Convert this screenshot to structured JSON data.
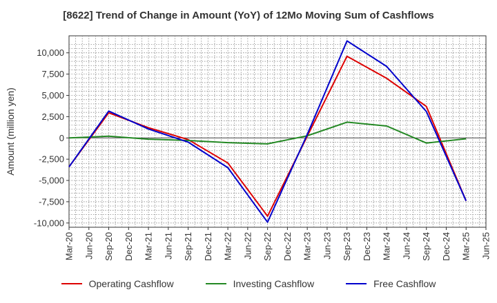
{
  "chart_data": {
    "type": "line",
    "title": "[8622]  Trend of Change in Amount (YoY) of 12Mo Moving Sum of Cashflows",
    "xlabel": "",
    "ylabel": "Amount (million yen)",
    "ylim": [
      -10500,
      12000
    ],
    "grid": true,
    "legend_position": "bottom",
    "x_ticks": [
      "Mar-20",
      "Jun-20",
      "Sep-20",
      "Dec-20",
      "Mar-21",
      "Jun-21",
      "Sep-21",
      "Dec-21",
      "Mar-22",
      "Jun-22",
      "Sep-22",
      "Dec-22",
      "Mar-23",
      "Jun-23",
      "Sep-23",
      "Dec-23",
      "Mar-24",
      "Jun-24",
      "Sep-24",
      "Dec-24",
      "Mar-25",
      "Jun-25"
    ],
    "y_ticks": [
      10000,
      7500,
      5000,
      2500,
      0,
      -2500,
      -5000,
      -7500,
      -10000
    ],
    "y_tick_labels": [
      "10,000",
      "7,500",
      "5,000",
      "2,500",
      "0",
      "-2,500",
      "-5,000",
      "-7,500",
      "-10,000"
    ],
    "series": [
      {
        "name": "Operating Cashflow",
        "color": "#dd0000",
        "x": [
          "Mar-20",
          "Sep-20",
          "Mar-21",
          "Sep-21",
          "Mar-22",
          "Sep-22",
          "Mar-23",
          "Sep-23",
          "Mar-24",
          "Sep-24",
          "Mar-25"
        ],
        "values": [
          -3400,
          2950,
          1200,
          -200,
          -2950,
          -9200,
          200,
          9600,
          7000,
          3700,
          -7400
        ]
      },
      {
        "name": "Investing Cashflow",
        "color": "#228822",
        "x": [
          "Mar-20",
          "Sep-20",
          "Mar-21",
          "Sep-21",
          "Mar-22",
          "Sep-22",
          "Mar-23",
          "Sep-23",
          "Mar-24",
          "Sep-24",
          "Mar-25"
        ],
        "values": [
          0,
          200,
          -150,
          -300,
          -550,
          -700,
          250,
          1850,
          1400,
          -600,
          -100
        ]
      },
      {
        "name": "Free Cashflow",
        "color": "#0000cc",
        "x": [
          "Mar-20",
          "Sep-20",
          "Mar-21",
          "Sep-21",
          "Mar-22",
          "Sep-22",
          "Mar-23",
          "Sep-23",
          "Mar-24",
          "Sep-24",
          "Mar-25"
        ],
        "values": [
          -3400,
          3150,
          1050,
          -500,
          -3500,
          -9900,
          400,
          11400,
          8400,
          3100,
          -7400
        ]
      }
    ]
  }
}
